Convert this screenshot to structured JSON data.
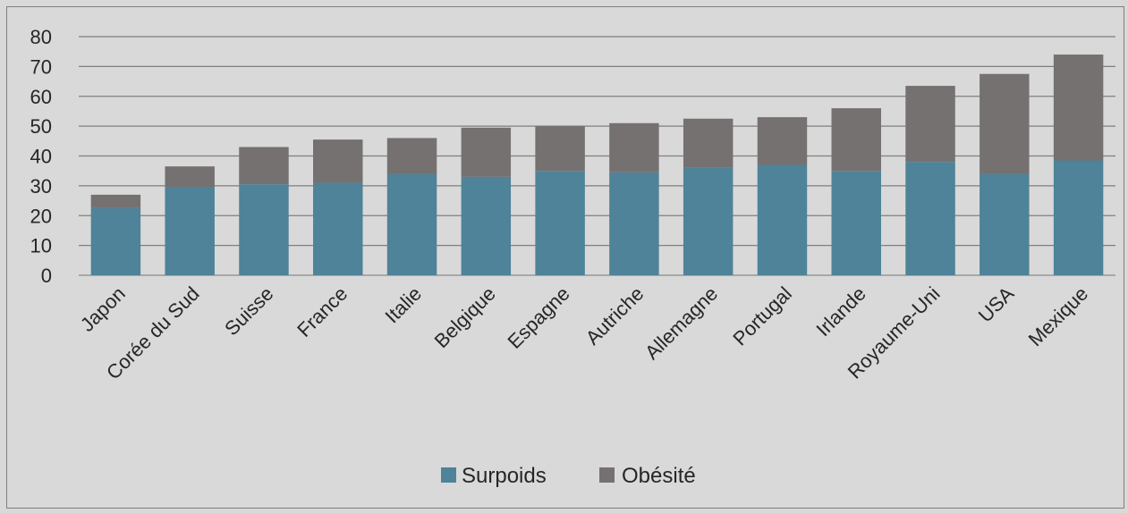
{
  "chart_data": {
    "type": "bar",
    "stacked": true,
    "categories": [
      "Japon",
      "Corée du Sud",
      "Suisse",
      "France",
      "Italie",
      "Belgique",
      "Espagne",
      "Autriche",
      "Allemagne",
      "Portugal",
      "Irlande",
      "Royaume-Uni",
      "USA",
      "Mexique"
    ],
    "series": [
      {
        "name": "Surpoids",
        "color": "#4e8399",
        "values": [
          22.5,
          29.5,
          30.5,
          31,
          34,
          33,
          35,
          34.5,
          36,
          37,
          35,
          38,
          34,
          38.5
        ]
      },
      {
        "name": "Obésité",
        "color": "#767171",
        "values": [
          4.5,
          7,
          12.5,
          14.5,
          12,
          16.5,
          15,
          16.5,
          16.5,
          16,
          21,
          25.5,
          33.5,
          35.5
        ]
      }
    ],
    "ylim": [
      0,
      80
    ],
    "yticks": [
      "0",
      "10",
      "20",
      "30",
      "40",
      "50",
      "60",
      "70",
      "80"
    ],
    "grid": true,
    "legend_position": "bottom",
    "title": "",
    "xlabel": "",
    "ylabel": ""
  }
}
